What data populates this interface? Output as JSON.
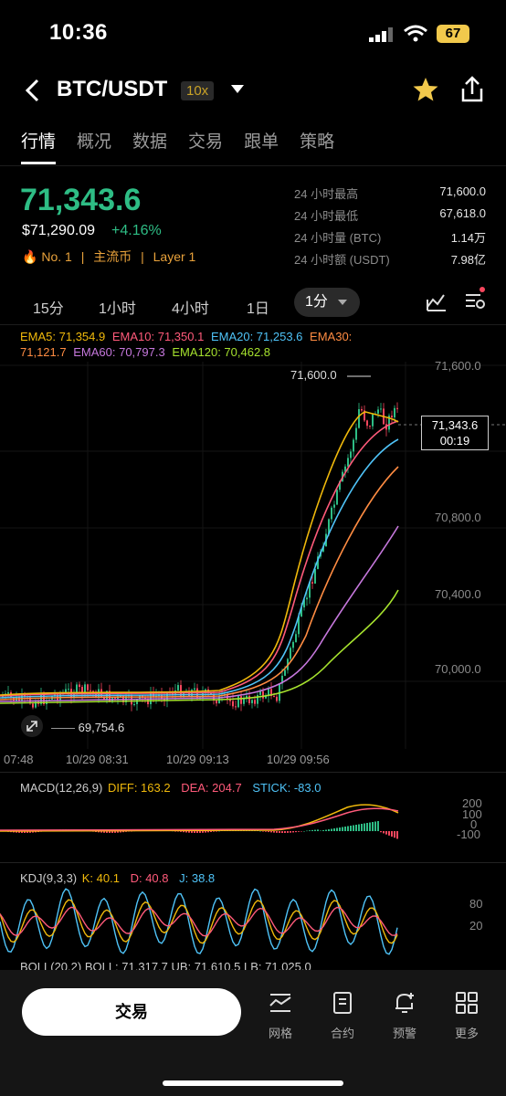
{
  "status_bar": {
    "time": "10:36",
    "battery": "67"
  },
  "header": {
    "pair": "BTC/USDT",
    "leverage": "10x"
  },
  "tabs": [
    "行情",
    "概况",
    "数据",
    "交易",
    "跟单",
    "策略"
  ],
  "ticker": {
    "price": "71,343.6",
    "usd_price": "$71,290.09",
    "change": "+4.16%",
    "tags": [
      "No. 1",
      "主流币",
      "Layer 1"
    ]
  },
  "stats": [
    {
      "label": "24 小时最高",
      "value": "71,600.0"
    },
    {
      "label": "24 小时最低",
      "value": "67,618.0"
    },
    {
      "label": "24 小时量 (BTC)",
      "value": "1.14万"
    },
    {
      "label": "24 小时额 (USDT)",
      "value": "7.98亿"
    }
  ],
  "intervals": [
    "15分",
    "1小时",
    "4小时",
    "1日",
    "1分"
  ],
  "ema": {
    "line1": [
      {
        "text": "EMA5: 71,354.9",
        "color": "#f0b90b"
      },
      {
        "text": "EMA10: 71,350.1",
        "color": "#ff5a7a"
      },
      {
        "text": "EMA20: 71,253.6",
        "color": "#4fc3f7"
      },
      {
        "text": "EMA30:",
        "color": "#ff8c42"
      }
    ],
    "line2": [
      {
        "text": "71,121.7",
        "color": "#ff8c42"
      },
      {
        "text": "EMA60: 70,797.3",
        "color": "#c678dd"
      },
      {
        "text": "EMA120: 70,462.8",
        "color": "#a6e22e"
      }
    ]
  },
  "chart": {
    "y_ticks": [
      "71,600.0",
      "70,800.0",
      "70,400.0",
      "70,000.0"
    ],
    "high_label": "71,600.0",
    "low_label": "69,754.6",
    "last_price": "71,343.6",
    "countdown": "00:19",
    "x_ticks": [
      "07:48",
      "10/29 08:31",
      "10/29 09:13",
      "10/29 09:56"
    ]
  },
  "macd": {
    "title": "MACD(12,26,9)",
    "diff": "DIFF: 163.2",
    "dea": "DEA: 204.7",
    "stick": "STICK: -83.0",
    "y_ticks": [
      "200",
      "100",
      "0",
      "-100"
    ]
  },
  "kdj": {
    "title": "KDJ(9,3,3)",
    "k": "K: 40.1",
    "d": "D: 40.8",
    "j": "J: 38.8",
    "y_ticks": [
      "80",
      "20"
    ]
  },
  "boll": {
    "text": "BOLL(20,2)  BOLL: 71,317.7  UB: 71,610.5  LB: 71,025.0"
  },
  "bottom_bar": {
    "trade_label": "交易",
    "items": [
      "网格",
      "合约",
      "预警",
      "更多"
    ]
  },
  "colors": {
    "up": "#2ebd85",
    "down": "#f6465d",
    "accent": "#f2c94c"
  }
}
